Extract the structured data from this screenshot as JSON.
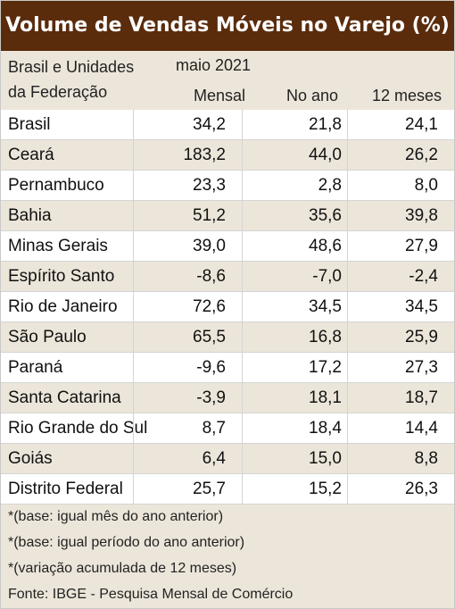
{
  "title": "Volume de Vendas Móveis no Varejo (%)",
  "header": {
    "region_label_line1": "Brasil e Unidades",
    "region_label_line2": "da Federação",
    "period": "maio 2021",
    "col_mensal": "Mensal",
    "col_no_ano": "No ano",
    "col_12_meses": "12 meses"
  },
  "chart_data": {
    "type": "table",
    "columns": [
      "Mensal",
      "No ano",
      "12 meses"
    ],
    "rows": [
      {
        "name": "Brasil",
        "mensal": "34,2",
        "no_ano": "21,8",
        "doze_meses": "24,1"
      },
      {
        "name": "Ceará",
        "mensal": "183,2",
        "no_ano": "44,0",
        "doze_meses": "26,2"
      },
      {
        "name": "Pernambuco",
        "mensal": "23,3",
        "no_ano": "2,8",
        "doze_meses": "8,0"
      },
      {
        "name": "Bahia",
        "mensal": "51,2",
        "no_ano": "35,6",
        "doze_meses": "39,8"
      },
      {
        "name": "Minas Gerais",
        "mensal": "39,0",
        "no_ano": "48,6",
        "doze_meses": "27,9"
      },
      {
        "name": "Espírito Santo",
        "mensal": "-8,6",
        "no_ano": "-7,0",
        "doze_meses": "-2,4"
      },
      {
        "name": "Rio de Janeiro",
        "mensal": "72,6",
        "no_ano": "34,5",
        "doze_meses": "34,5"
      },
      {
        "name": "São Paulo",
        "mensal": "65,5",
        "no_ano": "16,8",
        "doze_meses": "25,9"
      },
      {
        "name": "Paraná",
        "mensal": "-9,6",
        "no_ano": "17,2",
        "doze_meses": "27,3"
      },
      {
        "name": "Santa Catarina",
        "mensal": "-3,9",
        "no_ano": "18,1",
        "doze_meses": "18,7"
      },
      {
        "name": "Rio Grande do Sul",
        "mensal": "8,7",
        "no_ano": "18,4",
        "doze_meses": "14,4"
      },
      {
        "name": "Goiás",
        "mensal": "6,4",
        "no_ano": "15,0",
        "doze_meses": "8,8"
      },
      {
        "name": "Distrito Federal",
        "mensal": "25,7",
        "no_ano": "15,2",
        "doze_meses": "26,3"
      }
    ]
  },
  "notes": [
    "*(base: igual mês do ano anterior)",
    "*(base: igual período do ano anterior)",
    "*(variação acumulada de 12 meses)",
    "Fonte: IBGE - Pesquisa Mensal de Comércio"
  ],
  "colors": {
    "title_bg": "#5a2c0c",
    "title_text": "#ffffff",
    "band_bg": "#ece6da",
    "row_bg": "#ffffff"
  }
}
